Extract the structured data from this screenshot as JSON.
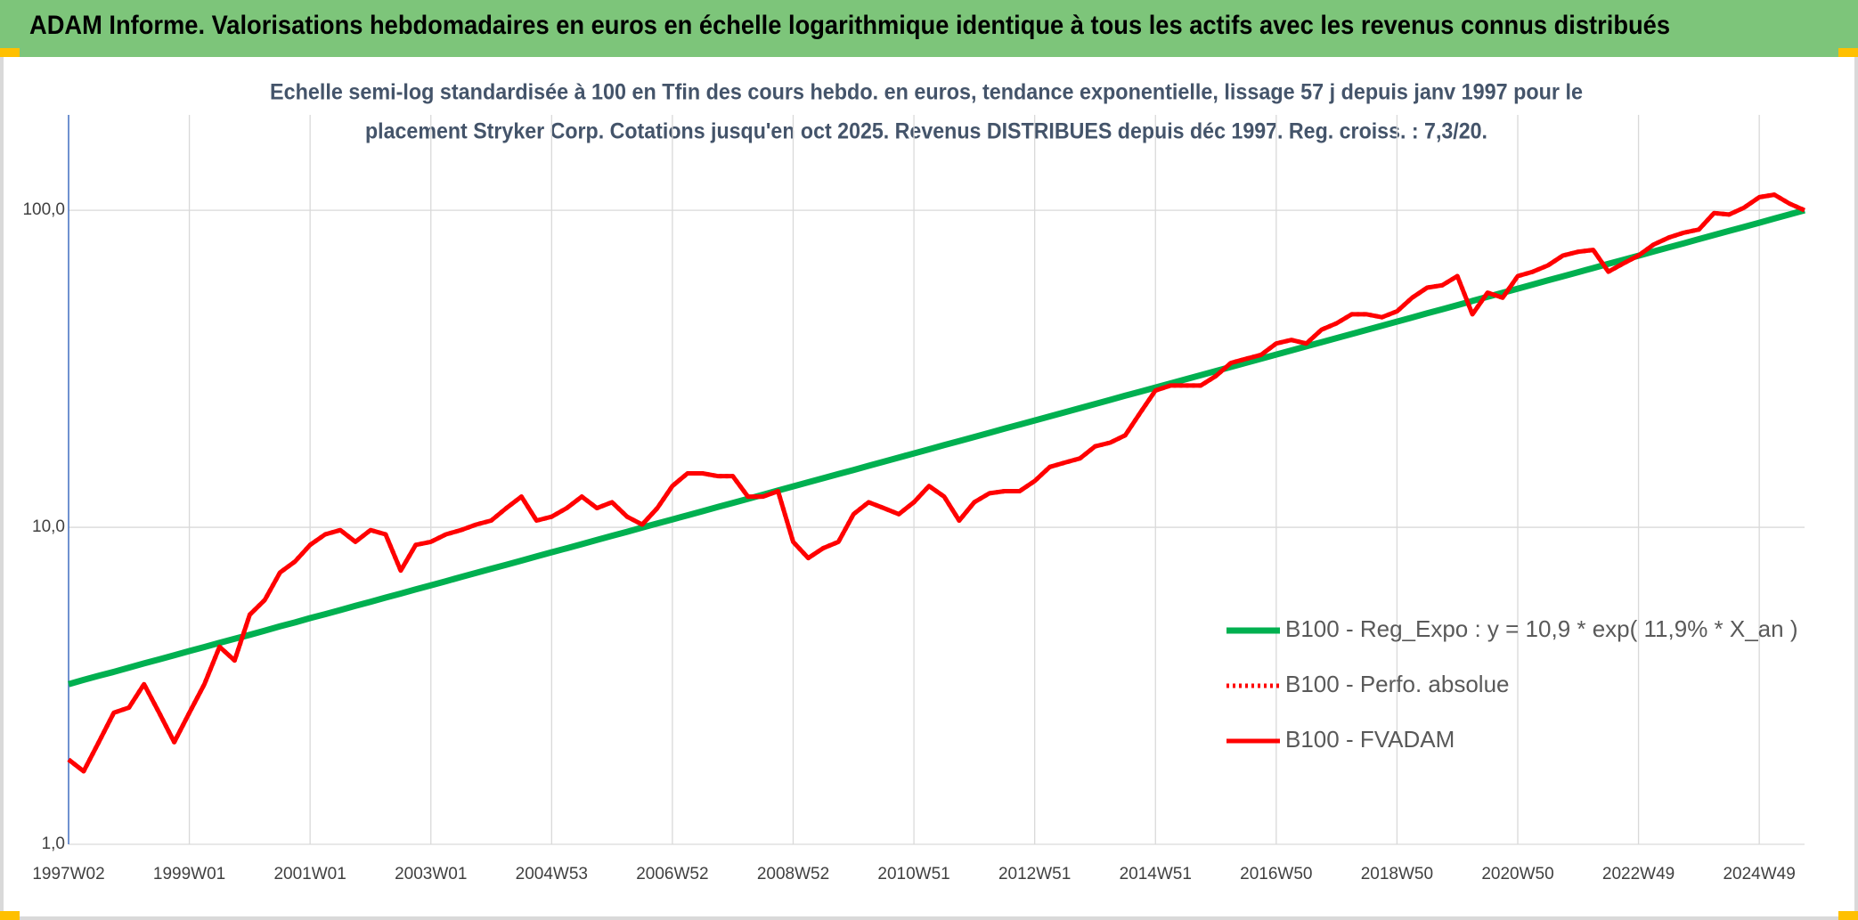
{
  "chart_data": {
    "type": "line",
    "title": "ADAM Informe. Valorisations hebdomadaires en euros en échelle logarithmique identique à tous les actifs avec les revenus connus distribués",
    "subtitle": [
      "Echelle semi-log standardisée à 100 en Tfin des cours hebdo. en euros, tendance exponentielle, lissage 57 j depuis janv 1997 pour le",
      "placement Stryker Corp. Cotations jusqu'en oct 2025. Revenus DISTRIBUES depuis déc 1997. Reg. croiss. : 7,3/20."
    ],
    "categories": [
      "1997W02",
      null,
      null,
      null,
      null,
      null,
      null,
      null,
      "1999W01",
      null,
      null,
      null,
      null,
      null,
      null,
      null,
      "2001W01",
      null,
      null,
      null,
      null,
      null,
      null,
      null,
      "2003W01",
      null,
      null,
      null,
      null,
      null,
      null,
      null,
      "2004W53",
      null,
      null,
      null,
      null,
      null,
      null,
      null,
      "2006W52",
      null,
      null,
      null,
      null,
      null,
      null,
      null,
      "2008W52",
      null,
      null,
      null,
      null,
      null,
      null,
      null,
      "2010W51",
      null,
      null,
      null,
      null,
      null,
      null,
      null,
      "2012W51",
      null,
      null,
      null,
      null,
      null,
      null,
      null,
      "2014W51",
      null,
      null,
      null,
      null,
      null,
      null,
      null,
      "2016W50",
      null,
      null,
      null,
      null,
      null,
      null,
      null,
      "2018W50",
      null,
      null,
      null,
      null,
      null,
      null,
      null,
      "2020W50",
      null,
      null,
      null,
      null,
      null,
      null,
      null,
      "2022W49",
      null,
      null,
      null,
      null,
      null,
      null,
      null,
      "2024W49",
      null,
      null,
      null
    ],
    "series": [
      {
        "name": "B100 - Reg_Expo : y = 10,9 * exp( 11,9% *  X_an )",
        "color": "#00b050",
        "dash": "solid",
        "values": [
          3.2,
          3.3,
          3.4,
          3.5,
          3.61,
          3.72,
          3.83,
          3.95,
          4.07,
          4.19,
          4.32,
          4.45,
          4.58,
          4.72,
          4.87,
          5.01,
          5.17,
          5.32,
          5.48,
          5.65,
          5.82,
          6.0,
          6.18,
          6.37,
          6.56,
          6.76,
          6.97,
          7.18,
          7.4,
          7.62,
          7.85,
          8.09,
          8.34,
          8.59,
          8.85,
          9.12,
          9.4,
          9.68,
          9.98,
          10.28,
          10.59,
          10.91,
          11.24,
          11.59,
          11.94,
          12.3,
          12.67,
          13.06,
          13.46,
          13.87,
          14.29,
          14.73,
          15.17,
          15.63,
          16.11,
          16.6,
          17.1,
          17.62,
          18.16,
          18.71,
          19.28,
          19.86,
          20.47,
          21.09,
          21.73,
          22.39,
          23.07,
          23.77,
          24.5,
          25.24,
          26.01,
          26.8,
          27.6,
          28.44,
          29.3,
          30.19,
          31.11,
          32.06,
          33.03,
          34.04,
          35.07,
          36.14,
          37.23,
          38.37,
          39.53,
          40.73,
          41.97,
          43.25,
          44.56,
          45.91,
          47.31,
          48.75,
          50.23,
          51.76,
          53.33,
          54.95,
          56.61,
          58.33,
          60.1,
          61.93,
          63.82,
          65.75,
          67.75,
          69.81,
          71.93,
          74.12,
          76.37,
          78.69,
          81.09,
          83.55,
          86.09,
          88.7,
          91.39,
          94.17,
          97.03,
          100
        ]
      },
      {
        "name": "B100 - Perfo. absolue",
        "color": "#ff0000",
        "dash": "dotted",
        "values": [
          1.85,
          1.7,
          2.1,
          2.6,
          2.7,
          3.2,
          2.6,
          2.1,
          2.6,
          3.2,
          4.2,
          3.8,
          5.3,
          5.9,
          7.2,
          7.8,
          8.8,
          9.5,
          9.8,
          9.0,
          9.8,
          9.5,
          7.3,
          8.8,
          9.0,
          9.5,
          9.8,
          10.2,
          10.5,
          11.5,
          12.5,
          10.5,
          10.8,
          11.5,
          12.5,
          11.5,
          12.0,
          10.8,
          10.2,
          11.5,
          13.5,
          14.8,
          14.8,
          14.5,
          14.5,
          12.5,
          12.5,
          13.0,
          9.0,
          8.0,
          8.6,
          9.0,
          11.0,
          12.0,
          11.5,
          11.0,
          12.0,
          13.5,
          12.5,
          10.5,
          12.0,
          12.8,
          13.0,
          13.0,
          14.0,
          15.5,
          16.0,
          16.5,
          18.0,
          18.5,
          19.5,
          23,
          27,
          28,
          28,
          28,
          30,
          33,
          34,
          35,
          38,
          39,
          38,
          42,
          44,
          47,
          47,
          46,
          48,
          53,
          57,
          58,
          62,
          47,
          55,
          53,
          62,
          64,
          67,
          72,
          74,
          75,
          64,
          68,
          72,
          78,
          82,
          85,
          87,
          98,
          97,
          102,
          110,
          112,
          105,
          100
        ]
      },
      {
        "name": "B100 - FVADAM",
        "color": "#ff0000",
        "dash": "solid",
        "values": [
          1.85,
          1.7,
          2.1,
          2.6,
          2.7,
          3.2,
          2.6,
          2.1,
          2.6,
          3.2,
          4.2,
          3.8,
          5.3,
          5.9,
          7.2,
          7.8,
          8.8,
          9.5,
          9.8,
          9.0,
          9.8,
          9.5,
          7.3,
          8.8,
          9.0,
          9.5,
          9.8,
          10.2,
          10.5,
          11.5,
          12.5,
          10.5,
          10.8,
          11.5,
          12.5,
          11.5,
          12.0,
          10.8,
          10.2,
          11.5,
          13.5,
          14.8,
          14.8,
          14.5,
          14.5,
          12.5,
          12.5,
          13.0,
          9.0,
          8.0,
          8.6,
          9.0,
          11.0,
          12.0,
          11.5,
          11.0,
          12.0,
          13.5,
          12.5,
          10.5,
          12.0,
          12.8,
          13.0,
          13.0,
          14.0,
          15.5,
          16.0,
          16.5,
          18.0,
          18.5,
          19.5,
          23,
          27,
          28,
          28,
          28,
          30,
          33,
          34,
          35,
          38,
          39,
          38,
          42,
          44,
          47,
          47,
          46,
          48,
          53,
          57,
          58,
          62,
          47,
          55,
          53,
          62,
          64,
          67,
          72,
          74,
          75,
          64,
          68,
          72,
          78,
          82,
          85,
          87,
          98,
          97,
          102,
          110,
          112,
          105,
          100
        ]
      }
    ],
    "log_scale": true,
    "ylim": [
      1,
      200
    ],
    "yticks": [
      {
        "value": 1,
        "label": "1,0"
      },
      {
        "value": 10,
        "label": "10,0"
      },
      {
        "value": 100,
        "label": "100,0"
      }
    ],
    "grid": true,
    "legend_position": "right"
  }
}
